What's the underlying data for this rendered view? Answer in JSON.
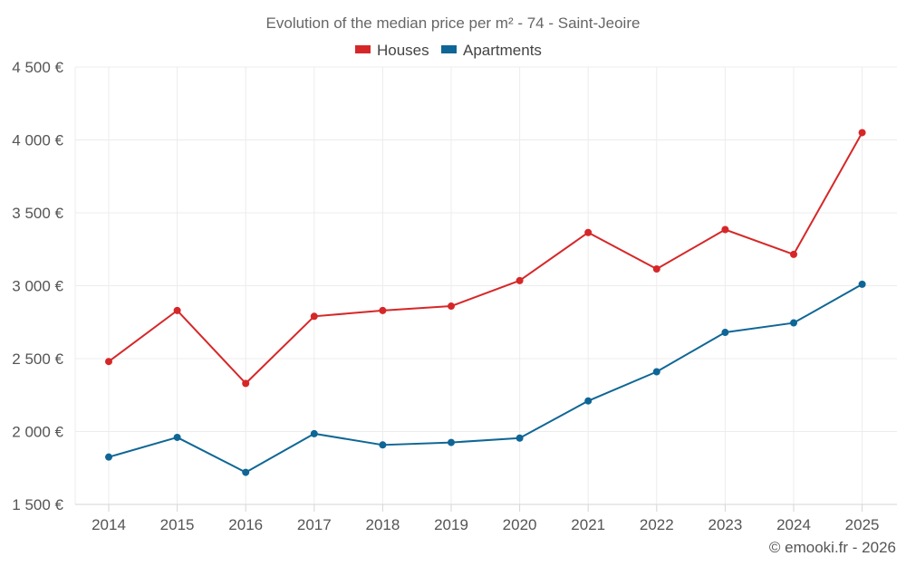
{
  "chart_data": {
    "type": "line",
    "title": "Evolution of the median price per m² - 74 - Saint-Jeoire",
    "categories": [
      "2014",
      "2015",
      "2016",
      "2017",
      "2018",
      "2019",
      "2020",
      "2021",
      "2022",
      "2023",
      "2024",
      "2025"
    ],
    "series": [
      {
        "name": "Houses",
        "color": "#d62728",
        "values": [
          2480,
          2830,
          2330,
          2790,
          2830,
          2860,
          3035,
          3365,
          3115,
          3385,
          3215,
          4050
        ]
      },
      {
        "name": "Apartments",
        "color": "#0f6696",
        "values": [
          1825,
          1960,
          1720,
          1985,
          1908,
          1925,
          1955,
          2210,
          2410,
          2680,
          2745,
          3010
        ]
      }
    ],
    "ylim": [
      1500,
      4500
    ],
    "yticks": [
      1500,
      2000,
      2500,
      3000,
      3500,
      4000,
      4500
    ],
    "ytick_labels": [
      "1 500 €",
      "2 000 €",
      "2 500 €",
      "3 000 €",
      "3 500 €",
      "4 000 €",
      "4 500 €"
    ],
    "xlabel": "",
    "ylabel": "",
    "grid": true,
    "legend_position": "top-center"
  },
  "credit": "© emooki.fr - 2026"
}
